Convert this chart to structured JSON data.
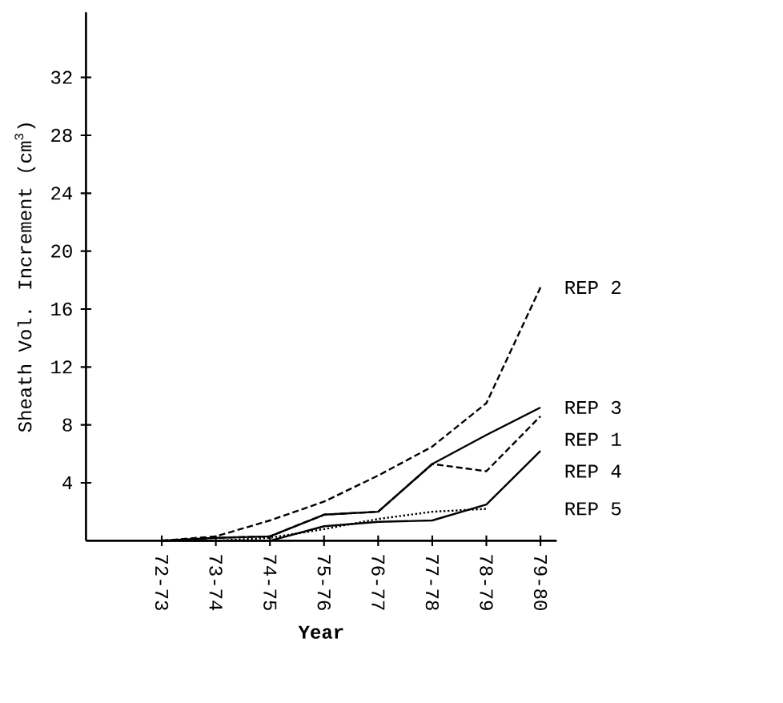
{
  "chart_data": {
    "type": "line",
    "xlabel": "Year",
    "ylabel": "Sheath Vol. Increment (cm$^{3}$)",
    "categories": [
      "72-73",
      "73-74",
      "74-75",
      "75-76",
      "76-77",
      "77-78",
      "78-79",
      "79-80"
    ],
    "ylim": [
      0,
      36.5
    ],
    "yticks": [
      4,
      8,
      12,
      16,
      20,
      24,
      28,
      32
    ],
    "marker": "none",
    "series": [
      {
        "name": "REP 2",
        "color": "#000000",
        "line_style": "dashed",
        "values": [
          0,
          0.3,
          1.4,
          2.7,
          4.5,
          6.5,
          9.5,
          17.5
        ]
      },
      {
        "name": "REP 3",
        "color": "#000000",
        "line_style": "solid",
        "values": [
          0,
          0.2,
          0.3,
          1.8,
          2.0,
          5.3,
          7.3,
          9.2
        ]
      },
      {
        "name": "REP 1",
        "color": "#000000",
        "line_style": "dashed",
        "values": [
          0,
          0.2,
          0.3,
          1.8,
          2.0,
          5.3,
          4.8,
          8.6
        ]
      },
      {
        "name": "REP 4",
        "color": "#000000",
        "line_style": "solid",
        "values": [
          0,
          0,
          0,
          1.0,
          1.3,
          1.4,
          2.5,
          6.2
        ]
      },
      {
        "name": "REP 5",
        "color": "#000000",
        "line_style": "dotted",
        "values": [
          0,
          0,
          0.2,
          0.8,
          1.5,
          2.0,
          2.2,
          null
        ]
      }
    ]
  }
}
